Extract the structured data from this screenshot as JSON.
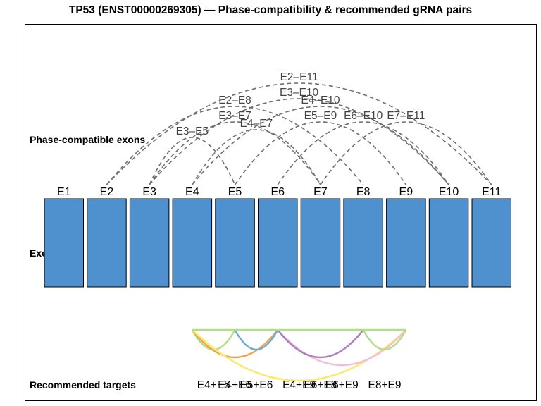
{
  "title": "TP53 (ENST00000269305) — Phase-compatibility & recommended gRNA pairs",
  "row_labels": {
    "phase": "Phase-compatible exons",
    "exons": "Exons",
    "targets": "Recommended targets"
  },
  "exons": [
    "E1",
    "E2",
    "E3",
    "E4",
    "E5",
    "E6",
    "E7",
    "E8",
    "E9",
    "E10",
    "E11"
  ],
  "exon_color": "#4e91ce",
  "phase_pairs": [
    {
      "from": 3,
      "to": 5,
      "label": "E3–E5"
    },
    {
      "from": 3,
      "to": 7,
      "label": "E3–E7"
    },
    {
      "from": 4,
      "to": 7,
      "label": "E4–E7"
    },
    {
      "from": 3,
      "to": 10,
      "label": "E3–E10"
    },
    {
      "from": 4,
      "to": 10,
      "label": "E4–E10"
    },
    {
      "from": 5,
      "to": 9,
      "label": "E5–E9"
    },
    {
      "from": 6,
      "to": 10,
      "label": "E6–E10"
    },
    {
      "from": 7,
      "to": 11,
      "label": "E7–E11"
    },
    {
      "from": 2,
      "to": 8,
      "label": "E2–E8"
    },
    {
      "from": 2,
      "to": 11,
      "label": "E2–E11"
    }
  ],
  "phase_line_color": "#707070",
  "recommended": [
    {
      "from": 4,
      "to": 5,
      "color": "#b2de8a"
    },
    {
      "from": 4,
      "to": 6,
      "color": "#f4a24a"
    },
    {
      "from": 5,
      "to": 6,
      "color": "#6aaed6"
    },
    {
      "from": 4,
      "to": 9,
      "color": "#fbe96a"
    },
    {
      "from": 6,
      "to": 8,
      "color": "#d8d8d8"
    },
    {
      "from": 6,
      "to": 9,
      "color": "#f4bcd8"
    },
    {
      "from": 6,
      "to": 8,
      "color": "#ad7fc0"
    },
    {
      "from": 8,
      "to": 9,
      "color": "#b2de8a"
    }
  ],
  "target_labels": [
    "E4+E5",
    "E4+E6",
    "E5+E6",
    "E4+E9",
    "E6+E8",
    "E6+E9",
    "E8+E9"
  ]
}
